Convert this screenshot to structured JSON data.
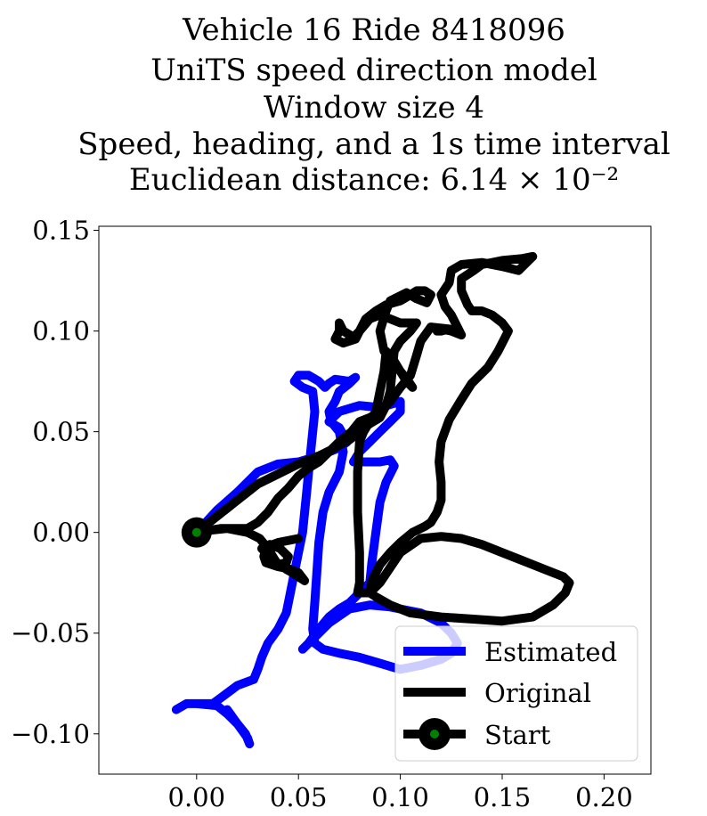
{
  "chart_data": {
    "type": "line",
    "title_lines": [
      "Vehicle 16 Ride 8418096",
      "UniTS speed direction model",
      "Window size 4",
      "Speed, heading, and a 1s time interval",
      "Euclidean distance: 6.14 × 10⁻²"
    ],
    "xlabel": "",
    "ylabel": "",
    "xlim": [
      -0.048,
      0.223
    ],
    "ylim": [
      -0.12,
      0.152
    ],
    "xticks": [
      0.0,
      0.05,
      0.1,
      0.15,
      0.2
    ],
    "xtick_labels": [
      "0.00",
      "0.05",
      "0.10",
      "0.15",
      "0.20"
    ],
    "yticks": [
      0.15,
      0.1,
      0.05,
      0.0,
      -0.05,
      -0.1
    ],
    "ytick_labels": [
      "0.15",
      "0.10",
      "0.05",
      "0.00",
      "−0.05",
      "−0.10"
    ],
    "grid": false,
    "legend_position": "lower-right",
    "series": [
      {
        "name": "Estimated",
        "color": "#0000ff",
        "points": [
          [
            0.0,
            0.0
          ],
          [
            0.01,
            0.011
          ],
          [
            0.02,
            0.02
          ],
          [
            0.03,
            0.03
          ],
          [
            0.04,
            0.034
          ],
          [
            0.05,
            0.035
          ],
          [
            0.06,
            0.038
          ],
          [
            0.07,
            0.042
          ],
          [
            0.074,
            0.045
          ],
          [
            0.07,
            0.052
          ],
          [
            0.065,
            0.055
          ],
          [
            0.07,
            0.06
          ],
          [
            0.08,
            0.063
          ],
          [
            0.09,
            0.062
          ],
          [
            0.1,
            0.065
          ],
          [
            0.1,
            0.06
          ],
          [
            0.095,
            0.055
          ],
          [
            0.09,
            0.05
          ],
          [
            0.085,
            0.045
          ],
          [
            0.08,
            0.04
          ],
          [
            0.077,
            0.035
          ],
          [
            0.083,
            0.035
          ],
          [
            0.09,
            0.035
          ],
          [
            0.095,
            0.036
          ],
          [
            0.097,
            0.033
          ],
          [
            0.093,
            0.025
          ],
          [
            0.09,
            0.015
          ],
          [
            0.088,
            0.0
          ],
          [
            0.086,
            -0.015
          ],
          [
            0.085,
            -0.025
          ],
          [
            0.08,
            -0.03
          ],
          [
            0.075,
            -0.035
          ],
          [
            0.07,
            -0.038
          ],
          [
            0.065,
            -0.042
          ],
          [
            0.06,
            -0.048
          ],
          [
            0.055,
            -0.055
          ],
          [
            0.052,
            -0.058
          ],
          [
            0.058,
            -0.052
          ],
          [
            0.065,
            -0.045
          ],
          [
            0.075,
            -0.038
          ],
          [
            0.085,
            -0.036
          ],
          [
            0.095,
            -0.037
          ],
          [
            0.1,
            -0.038
          ],
          [
            0.11,
            -0.04
          ],
          [
            0.12,
            -0.045
          ],
          [
            0.125,
            -0.05
          ],
          [
            0.128,
            -0.055
          ],
          [
            0.125,
            -0.06
          ],
          [
            0.12,
            -0.063
          ],
          [
            0.11,
            -0.066
          ],
          [
            0.1,
            -0.068
          ],
          [
            0.09,
            -0.065
          ],
          [
            0.08,
            -0.062
          ],
          [
            0.07,
            -0.06
          ],
          [
            0.062,
            -0.058
          ],
          [
            0.058,
            -0.055
          ],
          [
            0.057,
            -0.048
          ],
          [
            0.058,
            -0.035
          ],
          [
            0.059,
            -0.02
          ],
          [
            0.06,
            -0.005
          ],
          [
            0.062,
            0.01
          ],
          [
            0.065,
            0.02
          ],
          [
            0.07,
            0.03
          ],
          [
            0.072,
            0.04
          ],
          [
            0.07,
            0.05
          ],
          [
            0.066,
            0.055
          ],
          [
            0.065,
            0.06
          ],
          [
            0.068,
            0.065
          ],
          [
            0.07,
            0.07
          ],
          [
            0.075,
            0.074
          ],
          [
            0.078,
            0.077
          ],
          [
            0.075,
            0.075
          ],
          [
            0.068,
            0.076
          ],
          [
            0.065,
            0.074
          ],
          [
            0.063,
            0.072
          ],
          [
            0.06,
            0.075
          ],
          [
            0.055,
            0.078
          ],
          [
            0.05,
            0.078
          ],
          [
            0.048,
            0.075
          ],
          [
            0.052,
            0.072
          ],
          [
            0.057,
            0.07
          ],
          [
            0.058,
            0.06
          ],
          [
            0.057,
            0.05
          ],
          [
            0.056,
            0.04
          ],
          [
            0.055,
            0.03
          ],
          [
            0.054,
            0.02
          ],
          [
            0.053,
            0.01
          ],
          [
            0.052,
            0.0
          ],
          [
            0.05,
            -0.01
          ],
          [
            0.048,
            -0.02
          ],
          [
            0.046,
            -0.03
          ],
          [
            0.044,
            -0.04
          ],
          [
            0.04,
            -0.048
          ],
          [
            0.035,
            -0.055
          ],
          [
            0.032,
            -0.062
          ],
          [
            0.03,
            -0.068
          ],
          [
            0.028,
            -0.073
          ],
          [
            0.02,
            -0.076
          ],
          [
            0.012,
            -0.082
          ],
          [
            0.008,
            -0.085
          ],
          [
            0.0,
            -0.085
          ],
          [
            -0.005,
            -0.085
          ],
          [
            -0.01,
            -0.088
          ],
          [
            -0.005,
            -0.085
          ],
          [
            0.0,
            -0.085
          ],
          [
            0.01,
            -0.086
          ],
          [
            0.015,
            -0.09
          ],
          [
            0.02,
            -0.095
          ],
          [
            0.024,
            -0.1
          ],
          [
            0.026,
            -0.105
          ],
          [
            0.025,
            -0.102
          ],
          [
            0.02,
            -0.095
          ],
          [
            0.015,
            -0.088
          ]
        ]
      },
      {
        "name": "Original",
        "color": "#000000",
        "points": [
          [
            0.0,
            0.0
          ],
          [
            0.01,
            0.008
          ],
          [
            0.02,
            0.016
          ],
          [
            0.03,
            0.024
          ],
          [
            0.04,
            0.029
          ],
          [
            0.05,
            0.034
          ],
          [
            0.06,
            0.038
          ],
          [
            0.068,
            0.042
          ],
          [
            0.075,
            0.046
          ],
          [
            0.08,
            0.05
          ],
          [
            0.085,
            0.054
          ],
          [
            0.09,
            0.057
          ],
          [
            0.093,
            0.063
          ],
          [
            0.095,
            0.07
          ],
          [
            0.096,
            0.08
          ],
          [
            0.097,
            0.09
          ],
          [
            0.1,
            0.095
          ],
          [
            0.105,
            0.1
          ],
          [
            0.108,
            0.104
          ],
          [
            0.1,
            0.104
          ],
          [
            0.095,
            0.106
          ],
          [
            0.09,
            0.108
          ],
          [
            0.085,
            0.106
          ],
          [
            0.08,
            0.1
          ],
          [
            0.077,
            0.097
          ],
          [
            0.072,
            0.1
          ],
          [
            0.07,
            0.104
          ],
          [
            0.07,
            0.1
          ],
          [
            0.068,
            0.096
          ],
          [
            0.072,
            0.094
          ],
          [
            0.078,
            0.096
          ],
          [
            0.08,
            0.1
          ],
          [
            0.083,
            0.106
          ],
          [
            0.088,
            0.11
          ],
          [
            0.093,
            0.113
          ],
          [
            0.1,
            0.115
          ],
          [
            0.105,
            0.118
          ],
          [
            0.108,
            0.12
          ],
          [
            0.112,
            0.12
          ],
          [
            0.115,
            0.118
          ],
          [
            0.113,
            0.114
          ],
          [
            0.108,
            0.116
          ],
          [
            0.103,
            0.119
          ],
          [
            0.095,
            0.115
          ],
          [
            0.093,
            0.11
          ],
          [
            0.09,
            0.1
          ],
          [
            0.092,
            0.09
          ],
          [
            0.097,
            0.085
          ],
          [
            0.1,
            0.08
          ],
          [
            0.104,
            0.075
          ],
          [
            0.106,
            0.072
          ],
          [
            0.103,
            0.075
          ],
          [
            0.1,
            0.08
          ],
          [
            0.096,
            0.085
          ],
          [
            0.093,
            0.09
          ],
          [
            0.092,
            0.08
          ],
          [
            0.09,
            0.07
          ],
          [
            0.088,
            0.06
          ],
          [
            0.085,
            0.055
          ],
          [
            0.082,
            0.05
          ],
          [
            0.08,
            0.045
          ],
          [
            0.079,
            0.03
          ],
          [
            0.079,
            0.01
          ],
          [
            0.08,
            -0.01
          ],
          [
            0.08,
            -0.025
          ],
          [
            0.079,
            -0.03
          ],
          [
            0.085,
            -0.03
          ],
          [
            0.09,
            -0.025
          ],
          [
            0.1,
            -0.01
          ],
          [
            0.11,
            -0.003
          ],
          [
            0.12,
            -0.002
          ],
          [
            0.13,
            -0.003
          ],
          [
            0.14,
            -0.006
          ],
          [
            0.15,
            -0.01
          ],
          [
            0.16,
            -0.014
          ],
          [
            0.17,
            -0.018
          ],
          [
            0.18,
            -0.022
          ],
          [
            0.183,
            -0.025
          ],
          [
            0.181,
            -0.03
          ],
          [
            0.175,
            -0.036
          ],
          [
            0.165,
            -0.042
          ],
          [
            0.15,
            -0.044
          ],
          [
            0.135,
            -0.043
          ],
          [
            0.12,
            -0.042
          ],
          [
            0.105,
            -0.04
          ],
          [
            0.095,
            -0.036
          ],
          [
            0.088,
            -0.032
          ],
          [
            0.085,
            -0.03
          ],
          [
            0.086,
            -0.024
          ],
          [
            0.09,
            -0.016
          ],
          [
            0.095,
            -0.01
          ],
          [
            0.1,
            -0.005
          ],
          [
            0.106,
            0.0
          ],
          [
            0.112,
            0.003
          ],
          [
            0.115,
            0.005
          ],
          [
            0.118,
            0.01
          ],
          [
            0.12,
            0.016
          ],
          [
            0.12,
            0.025
          ],
          [
            0.119,
            0.035
          ],
          [
            0.12,
            0.045
          ],
          [
            0.124,
            0.056
          ],
          [
            0.13,
            0.066
          ],
          [
            0.135,
            0.074
          ],
          [
            0.143,
            0.082
          ],
          [
            0.148,
            0.09
          ],
          [
            0.152,
            0.098
          ],
          [
            0.153,
            0.1
          ],
          [
            0.15,
            0.104
          ],
          [
            0.145,
            0.108
          ],
          [
            0.14,
            0.11
          ],
          [
            0.135,
            0.11
          ],
          [
            0.133,
            0.113
          ],
          [
            0.13,
            0.12
          ],
          [
            0.13,
            0.126
          ],
          [
            0.136,
            0.13
          ],
          [
            0.14,
            0.133
          ],
          [
            0.15,
            0.135
          ],
          [
            0.16,
            0.136
          ],
          [
            0.165,
            0.137
          ],
          [
            0.163,
            0.135
          ],
          [
            0.158,
            0.13
          ],
          [
            0.15,
            0.132
          ],
          [
            0.14,
            0.134
          ],
          [
            0.13,
            0.133
          ],
          [
            0.125,
            0.13
          ],
          [
            0.124,
            0.124
          ],
          [
            0.12,
            0.118
          ],
          [
            0.122,
            0.112
          ],
          [
            0.125,
            0.108
          ],
          [
            0.128,
            0.102
          ],
          [
            0.13,
            0.098
          ],
          [
            0.125,
            0.1
          ],
          [
            0.12,
            0.101
          ],
          [
            0.118,
            0.1
          ],
          [
            0.12,
            0.1
          ],
          [
            0.124,
            0.101
          ],
          [
            0.115,
            0.102
          ],
          [
            0.11,
            0.095
          ],
          [
            0.108,
            0.088
          ],
          [
            0.105,
            0.078
          ],
          [
            0.1,
            0.072
          ],
          [
            0.095,
            0.065
          ],
          [
            0.09,
            0.06
          ],
          [
            0.085,
            0.057
          ],
          [
            0.08,
            0.055
          ],
          [
            0.076,
            0.05
          ],
          [
            0.07,
            0.045
          ],
          [
            0.065,
            0.04
          ],
          [
            0.06,
            0.035
          ],
          [
            0.055,
            0.032
          ],
          [
            0.05,
            0.028
          ],
          [
            0.045,
            0.022
          ],
          [
            0.04,
            0.017
          ],
          [
            0.035,
            0.01
          ],
          [
            0.03,
            0.005
          ],
          [
            0.025,
            0.002
          ],
          [
            0.018,
            0.002
          ],
          [
            0.012,
            0.002
          ],
          [
            0.006,
            0.001
          ],
          [
            0.015,
            0.002
          ],
          [
            0.025,
            0.0
          ],
          [
            0.031,
            -0.003
          ],
          [
            0.035,
            -0.008
          ],
          [
            0.038,
            -0.013
          ],
          [
            0.04,
            -0.016
          ],
          [
            0.044,
            -0.015
          ],
          [
            0.045,
            -0.012
          ],
          [
            0.041,
            -0.008
          ],
          [
            0.036,
            -0.006
          ],
          [
            0.034,
            -0.008
          ],
          [
            0.033,
            -0.012
          ],
          [
            0.034,
            -0.015
          ],
          [
            0.04,
            -0.017
          ],
          [
            0.045,
            -0.018
          ],
          [
            0.05,
            -0.02
          ],
          [
            0.053,
            -0.024
          ],
          [
            0.047,
            -0.02
          ],
          [
            0.04,
            -0.016
          ],
          [
            0.032,
            -0.008
          ],
          [
            0.04,
            -0.005
          ],
          [
            0.05,
            -0.003
          ]
        ]
      }
    ],
    "start_marker": {
      "name": "Start",
      "x": 0.0,
      "y": 0.0,
      "outer_color": "#000000",
      "inner_color": "#008000"
    },
    "legend": [
      "Estimated",
      "Original",
      "Start"
    ]
  }
}
